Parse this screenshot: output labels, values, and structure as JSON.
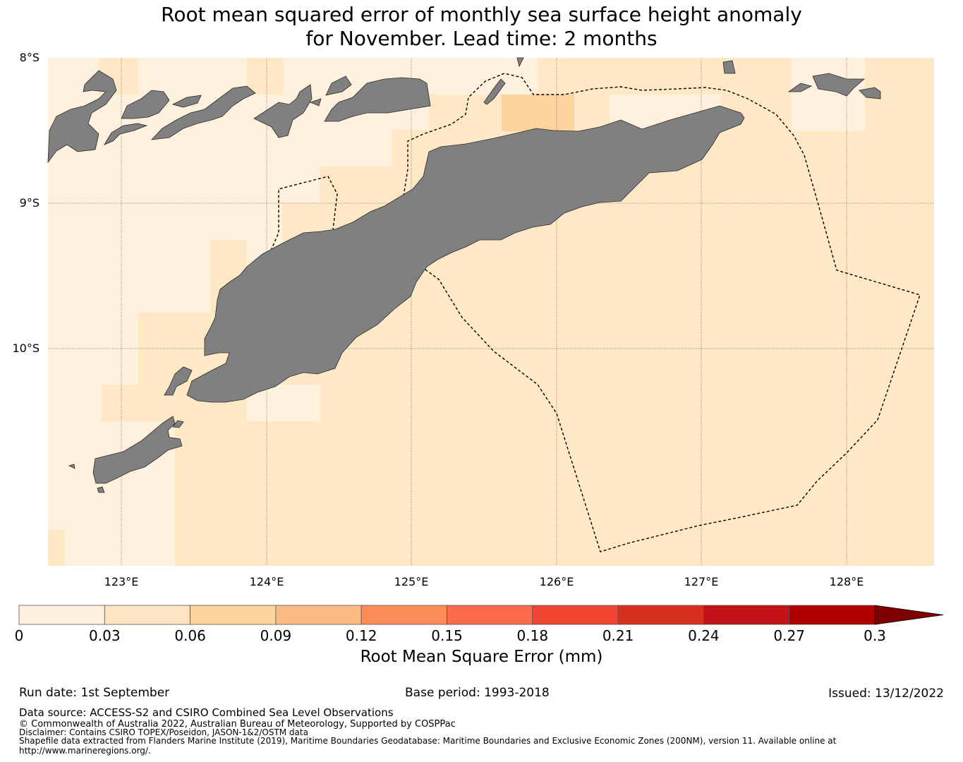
{
  "title": {
    "line1": "Root mean squared error of monthly sea surface height anomaly",
    "line2": "for November. Lead time: 2 months"
  },
  "map": {
    "lon_range": [
      122.5,
      128.6
    ],
    "lat_range": [
      -11.5,
      -8.0
    ],
    "lat_labels": [
      "8°S",
      "9°S",
      "10°S"
    ],
    "lon_labels": [
      "123°E",
      "124°E",
      "125°E",
      "126°E",
      "127°E",
      "128°E"
    ],
    "land_color": "#808080",
    "ocean_base_color": "#fee8c6",
    "light_color": "#fff1dd",
    "mid_color": "#fdd49e"
  },
  "colorbar": {
    "ticks": [
      "0",
      "0.03",
      "0.06",
      "0.09",
      "0.12",
      "0.15",
      "0.18",
      "0.21",
      "0.24",
      "0.27",
      "0.3"
    ],
    "colors": [
      "#fff1dd",
      "#fee4c4",
      "#fdd49e",
      "#fdbb84",
      "#fc8d59",
      "#fc6b4c",
      "#f04631",
      "#d7301f",
      "#c41318",
      "#b00000",
      "#7f0000"
    ],
    "label": "Root Mean Square Error (mm)"
  },
  "footer": {
    "run_date": "Run date: 1st September",
    "base_period": "Base period: 1993-2018",
    "issued": "Issued: 13/12/2022",
    "data_source": "Data source: ACCESS-S2 and CSIRO Combined Sea Level Observations",
    "copyright": "© Commonwealth of Australia 2022, Australian Bureau of Meteorology, Supported by COSPPac",
    "disclaimer": "Disclaimer: Contains CSIRO TOPEX/Poseidon, JASON-1&2/OSTM data",
    "shapefile": "Shapefile data extracted from Flanders Marine Institute (2019), Maritime Boundaries Geodatabase: Maritime Boundaries and Exclusive Economic Zones (200NM), version 11. Available online at",
    "url": "http://www.marineregions.org/."
  }
}
